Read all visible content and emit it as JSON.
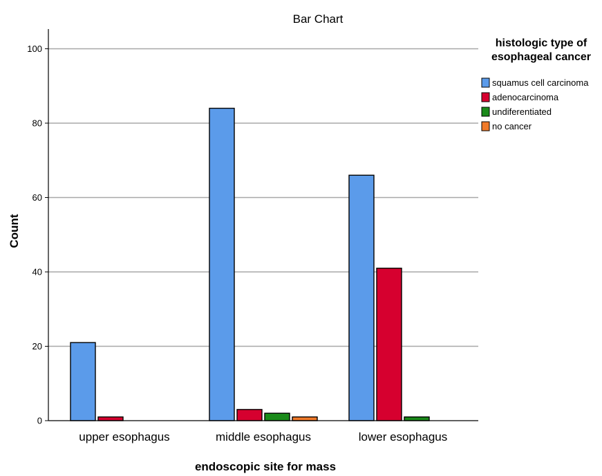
{
  "chart_data": {
    "type": "bar",
    "title": "Bar Chart",
    "xlabel": "endoscopic site for mass",
    "ylabel": "Count",
    "ylim": [
      0,
      105
    ],
    "yticks": [
      0,
      20,
      40,
      60,
      80,
      100
    ],
    "grid": true,
    "legend_position": "right",
    "legend_title": [
      "histologic type of",
      "esophageal cancer"
    ],
    "categories": [
      "upper esophagus",
      "middle esophagus",
      "lower esophagus"
    ],
    "series": [
      {
        "name": "squamus cell carcinoma",
        "color": "#5b9bea",
        "values": [
          21,
          84,
          66
        ]
      },
      {
        "name": "adenocarcinoma",
        "color": "#d6002f",
        "values": [
          1,
          3,
          41
        ]
      },
      {
        "name": "undiferentiated",
        "color": "#1a8a1a",
        "values": [
          0,
          2,
          1
        ]
      },
      {
        "name": "no cancer",
        "color": "#f07a2a",
        "values": [
          0,
          1,
          0
        ]
      }
    ]
  }
}
